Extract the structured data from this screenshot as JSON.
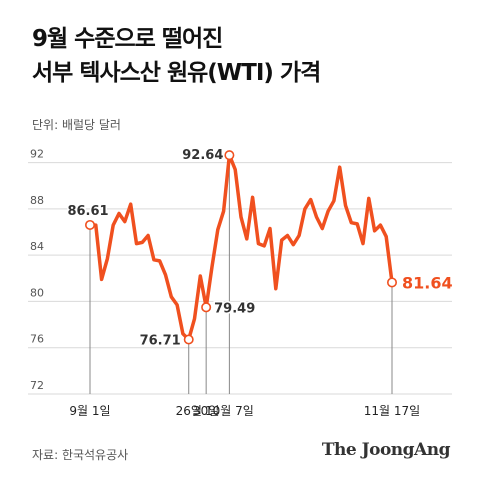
{
  "title": {
    "line1": "9월 수준으로 떨어진",
    "line2": "서부 텍사스산 원유(WTI) 가격"
  },
  "unit_label": "단위: 배럴당 달러",
  "source": "자료: 한국석유공사",
  "brand": "The JoongAng",
  "colors": {
    "line": "#f0501f",
    "last_label": "#f0501f",
    "grid": "#d9d9d9",
    "text": "#333333"
  },
  "chart_data": {
    "type": "line",
    "title": "9월 수준으로 떨어진 서부 텍사스산 원유(WTI) 가격",
    "ylabel": "단위: 배럴당 달러",
    "ylim": [
      72,
      93
    ],
    "yticks": [
      72,
      76,
      80,
      84,
      88,
      92
    ],
    "grid": "horizontal",
    "xticks": [
      {
        "index": 0,
        "label": "9월 1일"
      },
      {
        "index": 17,
        "label": "26일"
      },
      {
        "index": 20,
        "label": "30일"
      },
      {
        "index": 24,
        "label": "10월 7일"
      },
      {
        "index": 52,
        "label": "11월 17일"
      }
    ],
    "annotations": [
      {
        "index": 0,
        "label": "86.61",
        "highlight": false
      },
      {
        "index": 17,
        "label": "76.71",
        "highlight": false
      },
      {
        "index": 20,
        "label": "79.49",
        "highlight": false
      },
      {
        "index": 24,
        "label": "92.64",
        "highlight": false
      },
      {
        "index": 52,
        "label": "81.64",
        "highlight": true
      }
    ],
    "values": [
      86.61,
      86.6,
      81.9,
      83.7,
      86.6,
      87.6,
      86.9,
      88.4,
      85.0,
      85.1,
      85.7,
      83.6,
      83.5,
      82.3,
      80.4,
      79.7,
      77.2,
      76.71,
      78.5,
      82.2,
      79.49,
      83.0,
      86.2,
      87.8,
      92.64,
      91.4,
      87.3,
      85.4,
      89.0,
      85.0,
      84.8,
      86.3,
      81.1,
      85.3,
      85.7,
      84.9,
      85.7,
      88.0,
      88.8,
      87.3,
      86.3,
      87.8,
      88.7,
      91.6,
      88.3,
      86.8,
      86.7,
      85.0,
      88.9,
      86.1,
      86.6,
      85.6,
      81.64
    ]
  }
}
